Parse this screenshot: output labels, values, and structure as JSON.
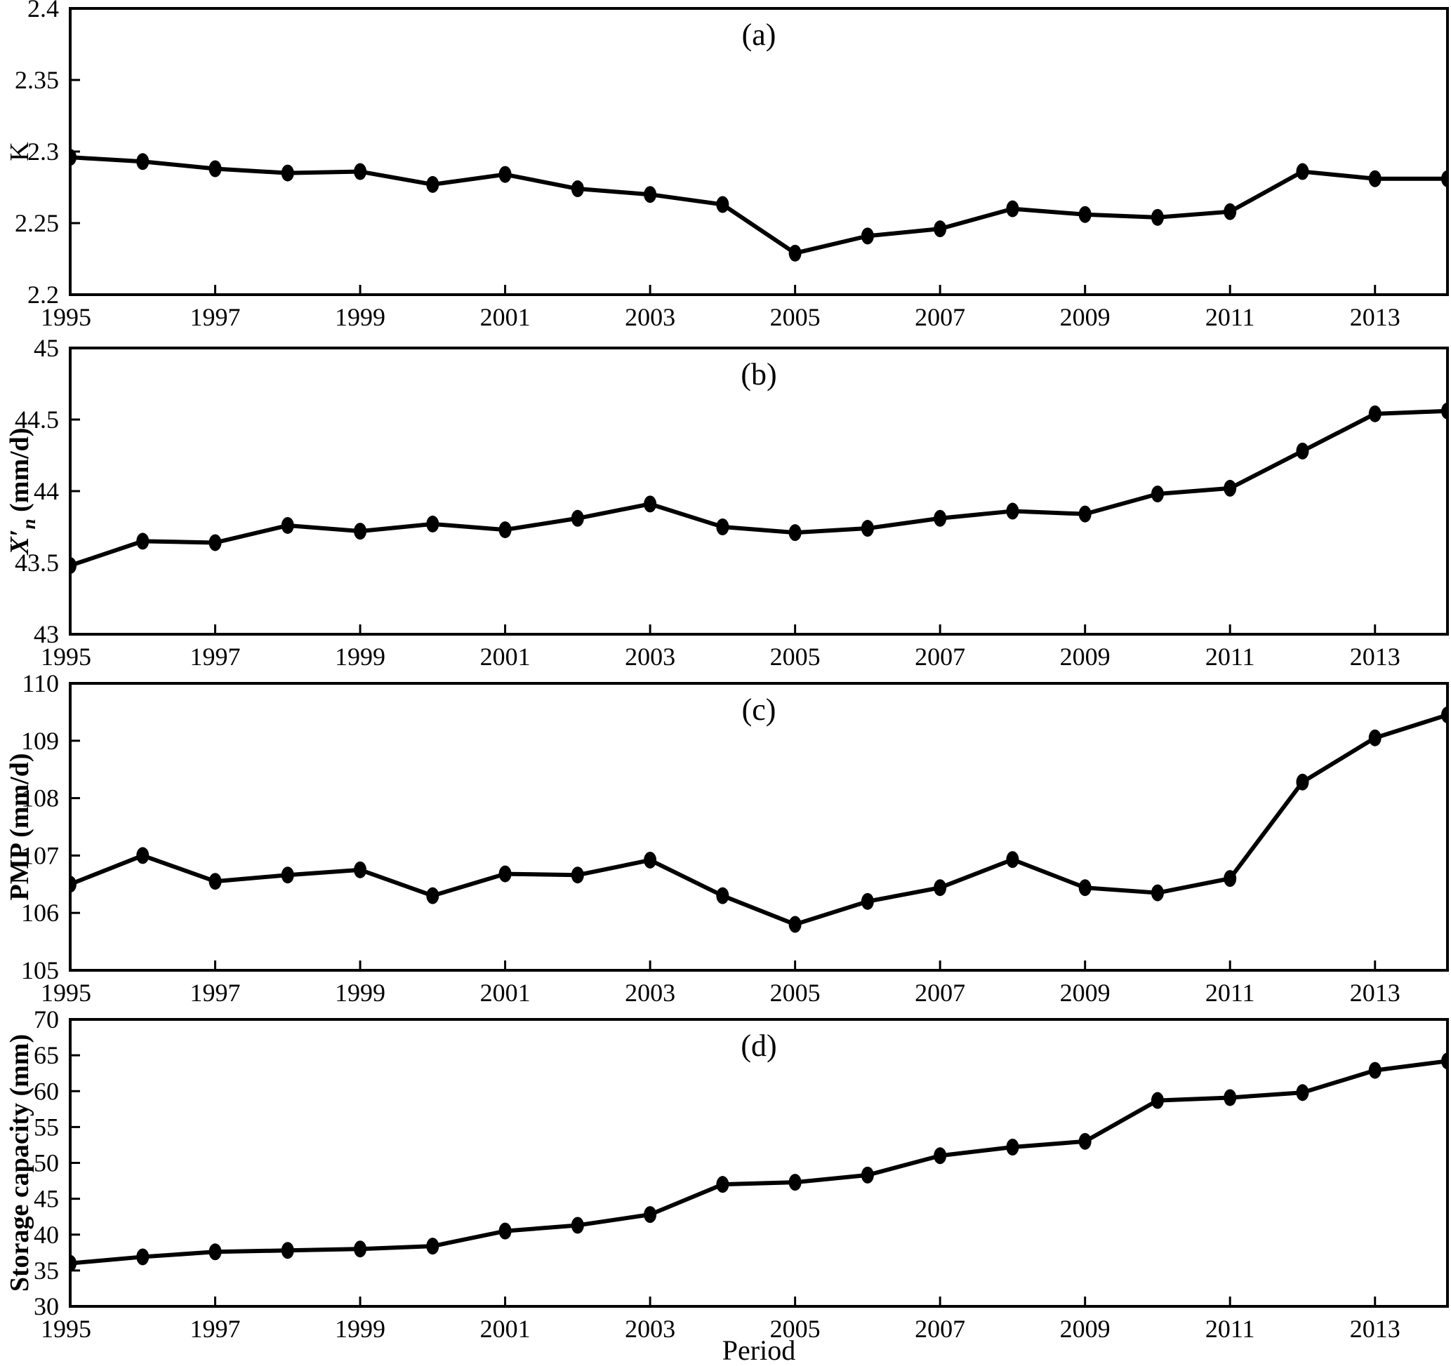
{
  "figure": {
    "background": "#ffffff",
    "line_color": "#000000",
    "marker": "filled-circle",
    "xlabel": "Period"
  },
  "years": [
    1995,
    1996,
    1997,
    1998,
    1999,
    2000,
    2001,
    2002,
    2003,
    2004,
    2005,
    2006,
    2007,
    2008,
    2009,
    2010,
    2011,
    2012,
    2013,
    2014
  ],
  "xticks": [
    {
      "v": 1995,
      "label": "1995"
    },
    {
      "v": 1997,
      "label": "1997"
    },
    {
      "v": 1999,
      "label": "1999"
    },
    {
      "v": 2001,
      "label": "2001"
    },
    {
      "v": 2003,
      "label": "2003"
    },
    {
      "v": 2005,
      "label": "2005"
    },
    {
      "v": 2007,
      "label": "2007"
    },
    {
      "v": 2009,
      "label": "2009"
    },
    {
      "v": 2011,
      "label": "2011"
    },
    {
      "v": 2013,
      "label": "2013"
    }
  ],
  "chart_data": [
    {
      "type": "line",
      "panel_label": "(a)",
      "ylabel": "K",
      "ylabel_parts": [
        {
          "t": "K"
        }
      ],
      "ylabel_bold": false,
      "ylim": [
        2.2,
        2.4
      ],
      "yticks": [
        {
          "v": 2.2,
          "label": "2.2"
        },
        {
          "v": 2.25,
          "label": "2.25"
        },
        {
          "v": 2.3,
          "label": "2.3"
        },
        {
          "v": 2.35,
          "label": "2.35"
        },
        {
          "v": 2.4,
          "label": "2.4"
        }
      ],
      "series_name": "K",
      "values": [
        2.296,
        2.293,
        2.288,
        2.285,
        2.286,
        2.277,
        2.284,
        2.274,
        2.27,
        2.263,
        2.229,
        2.241,
        2.246,
        2.26,
        2.256,
        2.254,
        2.258,
        2.286,
        2.281,
        2.281
      ]
    },
    {
      "type": "line",
      "panel_label": "(b)",
      "ylabel": "X′n (mm/d)",
      "ylabel_parts": [
        {
          "t": "X′",
          "italic": true
        },
        {
          "t": "n",
          "italic": true,
          "sub": true
        },
        {
          "t": " (mm/d)"
        }
      ],
      "ylabel_bold": true,
      "ylim": [
        43,
        45
      ],
      "yticks": [
        {
          "v": 43,
          "label": "43"
        },
        {
          "v": 43.5,
          "label": "43.5"
        },
        {
          "v": 44,
          "label": "44"
        },
        {
          "v": 44.5,
          "label": "44.5"
        },
        {
          "v": 45,
          "label": "45"
        }
      ],
      "series_name": "X'n (mm/d)",
      "values": [
        43.48,
        43.65,
        43.64,
        43.76,
        43.72,
        43.77,
        43.73,
        43.81,
        43.91,
        43.75,
        43.71,
        43.74,
        43.81,
        43.86,
        43.84,
        43.98,
        44.02,
        44.28,
        44.54,
        44.56
      ]
    },
    {
      "type": "line",
      "panel_label": "(c)",
      "ylabel": "PMP (mm/d)",
      "ylabel_parts": [
        {
          "t": "PMP (mm/d)"
        }
      ],
      "ylabel_bold": true,
      "ylim": [
        105,
        110
      ],
      "yticks": [
        {
          "v": 105,
          "label": "105"
        },
        {
          "v": 106,
          "label": "106"
        },
        {
          "v": 107,
          "label": "107"
        },
        {
          "v": 108,
          "label": "108"
        },
        {
          "v": 109,
          "label": "109"
        },
        {
          "v": 110,
          "label": "110"
        }
      ],
      "series_name": "PMP (mm/d)",
      "values": [
        106.5,
        107.0,
        106.55,
        106.66,
        106.75,
        106.3,
        106.68,
        106.66,
        106.92,
        106.3,
        105.8,
        106.2,
        106.44,
        106.93,
        106.44,
        106.35,
        106.6,
        108.28,
        109.05,
        109.45
      ]
    },
    {
      "type": "line",
      "panel_label": "(d)",
      "ylabel": "Storage capacity (mm)",
      "ylabel_parts": [
        {
          "t": "Storage capacity (mm)"
        }
      ],
      "ylabel_bold": true,
      "ylim": [
        30,
        70
      ],
      "yticks": [
        {
          "v": 30,
          "label": "30"
        },
        {
          "v": 35,
          "label": "35"
        },
        {
          "v": 40,
          "label": "40"
        },
        {
          "v": 45,
          "label": "45"
        },
        {
          "v": 50,
          "label": "50"
        },
        {
          "v": 55,
          "label": "55"
        },
        {
          "v": 60,
          "label": "60"
        },
        {
          "v": 65,
          "label": "65"
        },
        {
          "v": 70,
          "label": "70"
        }
      ],
      "series_name": "Storage capacity (mm)",
      "values": [
        36.0,
        36.9,
        37.6,
        37.8,
        38.0,
        38.4,
        40.5,
        41.3,
        42.8,
        47.0,
        47.3,
        48.3,
        51.0,
        52.2,
        53.0,
        58.7,
        59.1,
        59.8,
        62.9,
        64.2
      ]
    }
  ]
}
